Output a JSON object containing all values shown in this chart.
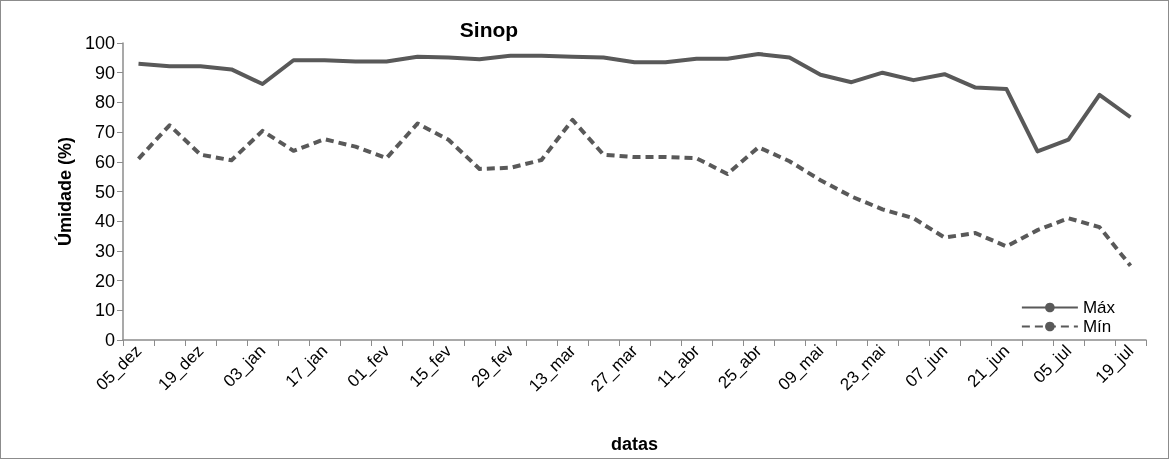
{
  "chart_data": {
    "type": "line",
    "title": "Sinop",
    "xlabel": "datas",
    "ylabel": "Úmidade (%)",
    "categories": [
      "05_dez",
      null,
      "19_dez",
      null,
      "03_jan",
      null,
      "17_jan",
      null,
      "01_fev",
      null,
      "15_fev",
      null,
      "29_fev",
      null,
      "13_mar",
      null,
      "27_mar",
      null,
      "11_abr",
      null,
      "25_abr",
      null,
      "09_mai",
      null,
      "23_mai",
      null,
      "07_jun",
      null,
      "21_jun",
      null,
      "05_jul",
      null,
      "19_jul"
    ],
    "series": [
      {
        "name": "Máx",
        "color": "#595959",
        "line_style": "solid",
        "values": [
          93,
          92.2,
          92.2,
          91.1,
          86.2,
          94.2,
          94.2,
          93.8,
          93.8,
          95.4,
          95.1,
          94.5,
          95.7,
          95.7,
          95.4,
          95.1,
          93.5,
          93.5,
          94.7,
          94.7,
          96.3,
          95.1,
          89.3,
          86.8,
          90,
          87.5,
          89.5,
          85,
          84.5,
          63.5,
          67.5,
          82.5,
          75
        ]
      },
      {
        "name": "Mín",
        "color": "#595959",
        "line_style": "dashed",
        "values": [
          61,
          72.3,
          62.4,
          60.5,
          70.4,
          63.7,
          67.6,
          65.1,
          61.2,
          72.9,
          67.4,
          57.6,
          58,
          60.6,
          74.1,
          62.4,
          61.6,
          61.6,
          61.2,
          55.9,
          64.9,
          60.2,
          53.8,
          48.3,
          44,
          41,
          34.5,
          36,
          31.5,
          37,
          41,
          38,
          25
        ]
      }
    ],
    "ylim": [
      0,
      100
    ],
    "yticks": [
      0,
      10,
      20,
      30,
      40,
      50,
      60,
      70,
      80,
      90,
      100
    ],
    "grid": false,
    "legend": "bottom right",
    "marker": "none"
  }
}
